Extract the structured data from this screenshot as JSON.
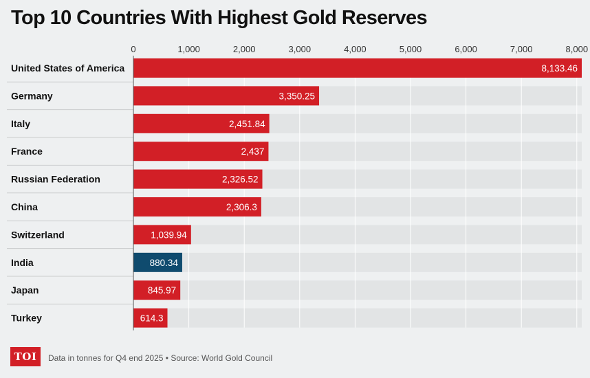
{
  "title": "Top 10 Countries With Highest Gold Reserves",
  "footer": {
    "logo_text": "TOI",
    "note": "Data in tonnes for Q4 end 2025 • Source: World Gold Council"
  },
  "colors": {
    "bar": "#d21f26",
    "highlight_bar": "#0f4b6e",
    "background": "#eef0f1",
    "track": "#e2e4e5"
  },
  "chart_data": {
    "type": "bar",
    "orientation": "horizontal",
    "categories": [
      "United States of America",
      "Germany",
      "Italy",
      "France",
      "Russian Federation",
      "China",
      "Switzerland",
      "India",
      "Japan",
      "Turkey"
    ],
    "values": [
      8133.46,
      3350.25,
      2451.84,
      2437,
      2326.52,
      2306.3,
      1039.94,
      880.34,
      845.97,
      614.3
    ],
    "value_labels": [
      "8,133.46",
      "3,350.25",
      "2,451.84",
      "2,437",
      "2,326.52",
      "2,306.3",
      "1,039.94",
      "880.34",
      "845.97",
      "614.3"
    ],
    "highlight": "India",
    "x_ticks": [
      0,
      1000,
      2000,
      3000,
      4000,
      5000,
      6000,
      7000,
      8000
    ],
    "x_tick_labels": [
      "0",
      "1,000",
      "2,000",
      "3,000",
      "4,000",
      "5,000",
      "6,000",
      "7,000",
      "8,000"
    ],
    "xlim": [
      0,
      8000
    ],
    "grid": true,
    "axis_position": "top"
  }
}
